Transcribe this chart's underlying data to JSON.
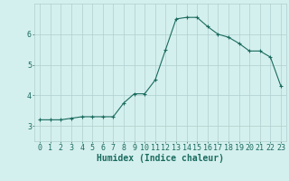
{
  "x": [
    0,
    1,
    2,
    3,
    4,
    5,
    6,
    7,
    8,
    9,
    10,
    11,
    12,
    13,
    14,
    15,
    16,
    17,
    18,
    19,
    20,
    21,
    22,
    23
  ],
  "y": [
    3.2,
    3.2,
    3.2,
    3.25,
    3.3,
    3.3,
    3.3,
    3.3,
    3.75,
    4.05,
    4.05,
    4.5,
    5.5,
    6.5,
    6.55,
    6.55,
    6.25,
    6.0,
    5.9,
    5.7,
    5.45,
    5.45,
    5.25,
    4.3
  ],
  "line_color": "#1a6b5e",
  "marker": "+",
  "marker_size": 3,
  "bg_color": "#d4f0ee",
  "grid_color": "#b0cece",
  "axis_color": "#1a6b5e",
  "xlabel": "Humidex (Indice chaleur)",
  "xlabel_fontsize": 7,
  "tick_fontsize": 6,
  "ylim": [
    2.5,
    7.0
  ],
  "xlim": [
    -0.5,
    23.5
  ],
  "yticks": [
    3,
    4,
    5,
    6
  ],
  "xticks": [
    0,
    1,
    2,
    3,
    4,
    5,
    6,
    7,
    8,
    9,
    10,
    11,
    12,
    13,
    14,
    15,
    16,
    17,
    18,
    19,
    20,
    21,
    22,
    23
  ]
}
